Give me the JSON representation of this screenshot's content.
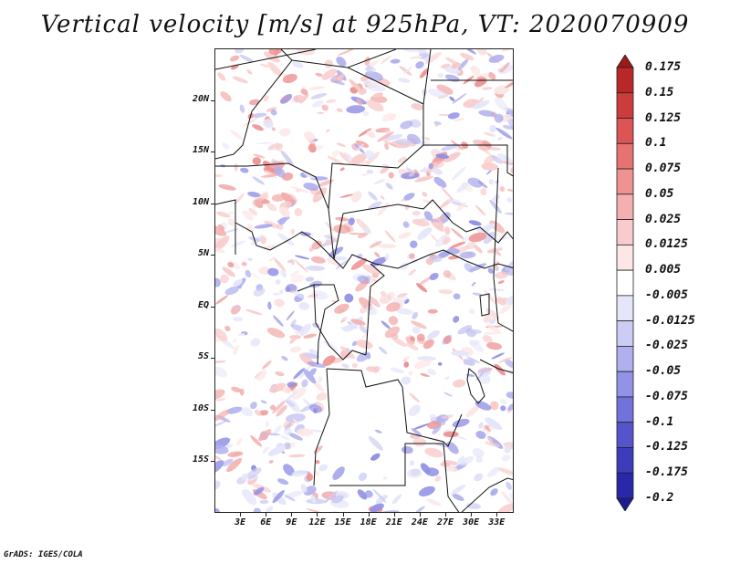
{
  "title": "Vertical velocity [m/s] at 925hPa, VT: 2020070909",
  "footer": "GrADS: IGES/COLA",
  "map": {
    "lon_range": [
      0,
      35
    ],
    "lat_range": [
      -20,
      25
    ],
    "lat_labels": [
      {
        "lat": 20,
        "text": "20N"
      },
      {
        "lat": 15,
        "text": "15N"
      },
      {
        "lat": 10,
        "text": "10N"
      },
      {
        "lat": 5,
        "text": "5N"
      },
      {
        "lat": 0,
        "text": "EQ"
      },
      {
        "lat": -5,
        "text": "5S"
      },
      {
        "lat": -10,
        "text": "10S"
      },
      {
        "lat": -15,
        "text": "15S"
      }
    ],
    "lon_labels": [
      {
        "lon": 3,
        "text": "3E"
      },
      {
        "lon": 6,
        "text": "6E"
      },
      {
        "lon": 9,
        "text": "9E"
      },
      {
        "lon": 12,
        "text": "12E"
      },
      {
        "lon": 15,
        "text": "15E"
      },
      {
        "lon": 18,
        "text": "18E"
      },
      {
        "lon": 21,
        "text": "21E"
      },
      {
        "lon": 24,
        "text": "24E"
      },
      {
        "lon": 27,
        "text": "27E"
      },
      {
        "lon": 30,
        "text": "30E"
      },
      {
        "lon": 33,
        "text": "33E"
      }
    ]
  },
  "colorbar": {
    "levels": [
      "0.175",
      "0.15",
      "0.125",
      "0.1",
      "0.075",
      "0.05",
      "0.025",
      "0.0125",
      "0.005",
      "-0.005",
      "-0.0125",
      "-0.025",
      "-0.05",
      "-0.075",
      "-0.1",
      "-0.125",
      "-0.175",
      "-0.2"
    ],
    "colors": [
      "#a01818",
      "#b82828",
      "#cc3c3c",
      "#dc5454",
      "#e67272",
      "#ee9292",
      "#f4b0b0",
      "#f8cccc",
      "#fce6e6",
      "#ffffff",
      "#e6e6fa",
      "#ccccf4",
      "#b0b0ee",
      "#9292e6",
      "#7272dc",
      "#5454cc",
      "#3c3cbc",
      "#2828a8",
      "#1c1c90"
    ]
  }
}
